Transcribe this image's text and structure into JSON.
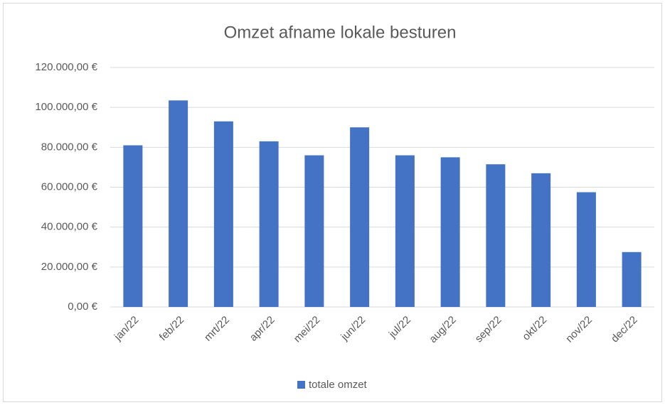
{
  "chart_data": {
    "type": "bar",
    "title": "Omzet afname lokale besturen",
    "categories": [
      "jan/22",
      "feb/22",
      "mrt/22",
      "apr/22",
      "mei/22",
      "jun/22",
      "jul/22",
      "aug/22",
      "sep/22",
      "okt/22",
      "nov/22",
      "dec/22"
    ],
    "series": [
      {
        "name": "totale omzet",
        "color": "#4472c4",
        "values": [
          81000,
          103500,
          93000,
          83000,
          76000,
          90000,
          76000,
          75000,
          71500,
          67000,
          57500,
          27500
        ]
      }
    ],
    "ylim": [
      0,
      120000
    ],
    "yticks": [
      {
        "value": 0,
        "label": "0,00 €"
      },
      {
        "value": 20000,
        "label": "20.000,00 €"
      },
      {
        "value": 40000,
        "label": "40.000,00 €"
      },
      {
        "value": 60000,
        "label": "60.000,00 €"
      },
      {
        "value": 80000,
        "label": "80.000,00 €"
      },
      {
        "value": 100000,
        "label": "100.000,00 €"
      },
      {
        "value": 120000,
        "label": "120.000,00 €"
      }
    ],
    "grid": true,
    "legend": "bottom"
  }
}
